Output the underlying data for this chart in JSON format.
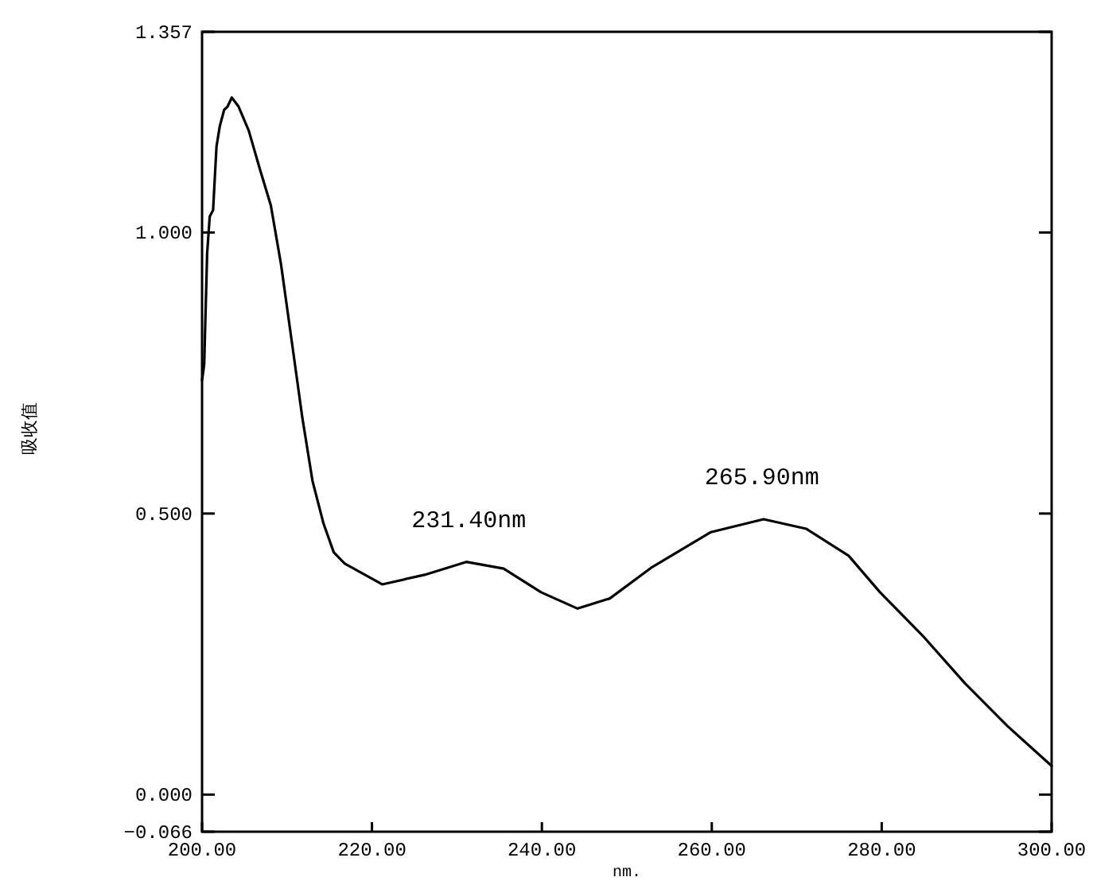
{
  "chart_data": {
    "type": "line",
    "xlabel": "nm.",
    "ylabel": "吸收值",
    "x": [
      200,
      200.25,
      200.6,
      200.9,
      201.3,
      201.7,
      202.1,
      202.6,
      203.0,
      203.5,
      204.3,
      205.5,
      206.8,
      208.1,
      209.3,
      210.6,
      211.8,
      213.0,
      214.3,
      215.5,
      216.8,
      219.3,
      221.2,
      226.2,
      231.1,
      235.5,
      239.9,
      244.2,
      248,
      253,
      259.9,
      266.1,
      271.1,
      276.1,
      279.8,
      284.8,
      289.8,
      294.8,
      300
    ],
    "series": [
      {
        "color": "#000000",
        "values": [
          0.737,
          0.765,
          0.963,
          1.028,
          1.04,
          1.153,
          1.19,
          1.218,
          1.224,
          1.24,
          1.224,
          1.181,
          1.113,
          1.048,
          0.943,
          0.802,
          0.671,
          0.558,
          0.482,
          0.431,
          0.411,
          0.39,
          0.374,
          0.391,
          0.414,
          0.402,
          0.36,
          0.331,
          0.349,
          0.405,
          0.467,
          0.49,
          0.473,
          0.425,
          0.36,
          0.283,
          0.198,
          0.122,
          0.051
        ]
      }
    ],
    "xlim": [
      200,
      300
    ],
    "ylim": [
      -0.066,
      1.357
    ],
    "xticks": [
      {
        "value": 200,
        "label": "200.00"
      },
      {
        "value": 220,
        "label": "220.00"
      },
      {
        "value": 240,
        "label": "240.00"
      },
      {
        "value": 260,
        "label": "260.00"
      },
      {
        "value": 280,
        "label": "280.00"
      },
      {
        "value": 300,
        "label": "300.00"
      }
    ],
    "yticks": [
      {
        "value": -0.066,
        "label": "−0.066"
      },
      {
        "value": 0,
        "label": "0.000"
      },
      {
        "value": 0.5,
        "label": "0.500"
      },
      {
        "value": 1,
        "label": "1.000"
      },
      {
        "value": 1.357,
        "label": "1.357"
      }
    ],
    "annotations": [
      {
        "text": "231.40nm",
        "x": 231.4,
        "y": 0.414
      },
      {
        "text": "265.90nm",
        "x": 265.9,
        "y": 0.49
      }
    ],
    "grid": false,
    "marker": "none",
    "line_style": "solid"
  }
}
